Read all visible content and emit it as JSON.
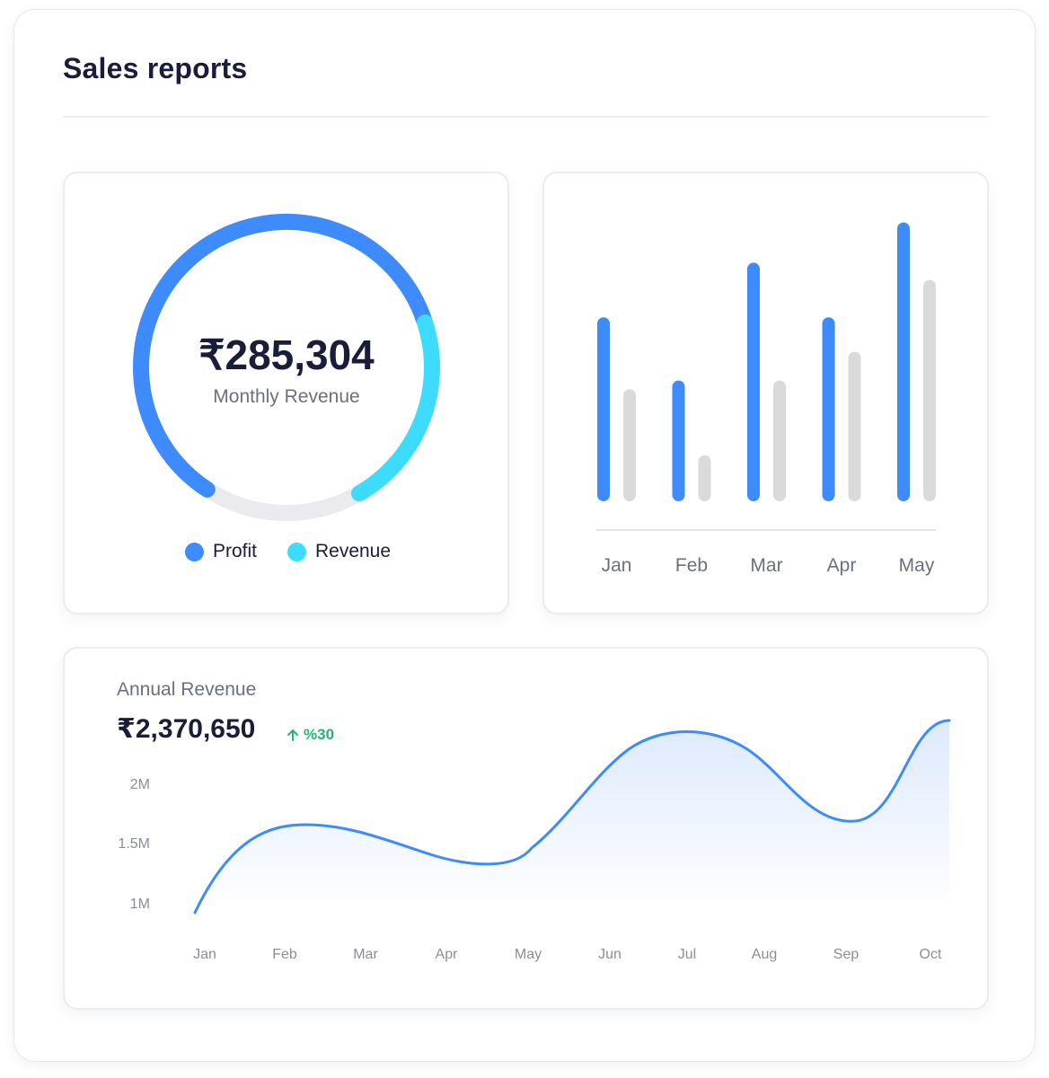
{
  "page": {
    "title": "Sales reports"
  },
  "monthly": {
    "amount": "₹285,304",
    "label": "Monthly Revenue",
    "segments": [
      {
        "name": "Profit",
        "start_deg": -147,
        "end_deg": 72,
        "color": "#3d8bfd"
      },
      {
        "name": "Revenue",
        "start_deg": 72,
        "end_deg": 150,
        "color": "#3ddcff"
      }
    ],
    "track_color": "#ebebef",
    "legend": [
      {
        "label": "Profit",
        "color": "#3d8bfd"
      },
      {
        "label": "Revenue",
        "color": "#3ddcff"
      }
    ]
  },
  "annual": {
    "label": "Annual Revenue",
    "amount": "₹2,370,650",
    "growth": "%30",
    "growth_icon": "arrow-up-icon",
    "growth_color": "#22b573"
  },
  "chart_data": [
    {
      "type": "bar",
      "categories": [
        "Jan",
        "Feb",
        "Mar",
        "Apr",
        "May"
      ],
      "series": [
        {
          "values": [
            64,
            42,
            83,
            64,
            97
          ],
          "color": "#3d8bfd"
        },
        {
          "values": [
            39,
            16,
            42,
            52,
            77
          ],
          "color": "#dadada"
        }
      ],
      "ylim": [
        0,
        100
      ],
      "grid": false
    },
    {
      "type": "area",
      "x": [
        "Jan",
        "Feb",
        "Mar",
        "Apr",
        "May",
        "Jun",
        "Jul",
        "Aug",
        "Sep",
        "Oct"
      ],
      "yticks": [
        "1M",
        "1.5M",
        "2M"
      ],
      "ylim": [
        1000000,
        2000000
      ],
      "line_color": "#3d8bfd",
      "fill_color": "#dde9fd",
      "grid": false
    }
  ]
}
